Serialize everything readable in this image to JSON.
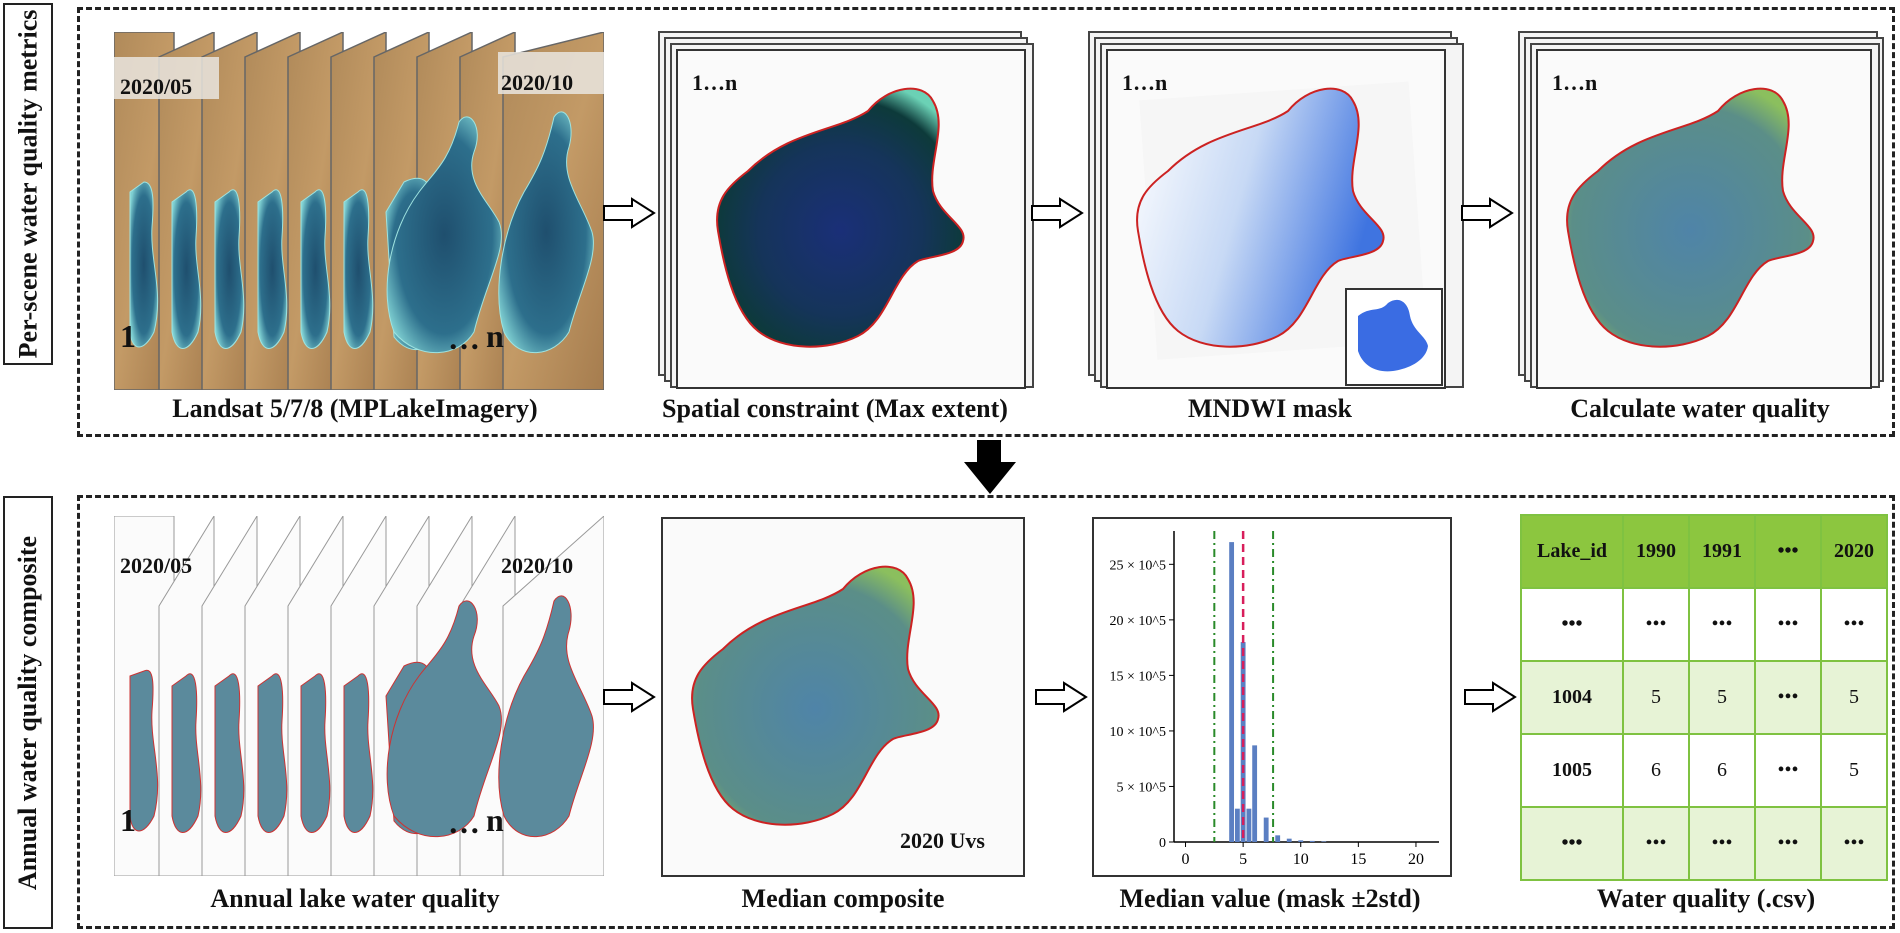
{
  "side_labels": {
    "top": "Per-scene water quality metrics",
    "bottom": "Annual water quality composite"
  },
  "top_row": {
    "landsat": {
      "date_start": "2020/05",
      "date_end": "2020/10",
      "first": "1",
      "ellipsis": "…",
      "last": "n",
      "caption": "Landsat 5/7/8 (MPLakeImagery)"
    },
    "spatial": {
      "count": "1…n",
      "caption": "Spatial constraint (Max extent)"
    },
    "mndwi": {
      "count": "1…n",
      "caption": "MNDWI mask"
    },
    "wq": {
      "count": "1…n",
      "caption": "Calculate water quality"
    }
  },
  "bottom_row": {
    "annual": {
      "date_start": "2020/05",
      "date_end": "2020/10",
      "first": "1",
      "ellipsis": "…",
      "last": "n",
      "caption": "Annual lake water quality"
    },
    "median": {
      "label": "2020 Uvs",
      "caption": "Median composite"
    },
    "hist": {
      "caption": "Median value (mask ±2std)"
    },
    "table": {
      "caption": "Water quality (.csv)",
      "header": [
        "Lake_id",
        "1990",
        "1991",
        "•••",
        "2020"
      ],
      "rows": [
        [
          "•••",
          "•••",
          "•••",
          "•••",
          "•••"
        ],
        [
          "1004",
          "5",
          "5",
          "•••",
          "5"
        ],
        [
          "1005",
          "6",
          "6",
          "•••",
          "5"
        ],
        [
          "•••",
          "•••",
          "•••",
          "•••",
          "•••"
        ]
      ]
    }
  },
  "chart_data": {
    "type": "bar",
    "title": "",
    "xlabel": "",
    "ylabel": "",
    "xlim": [
      -1,
      22
    ],
    "ylim": [
      0,
      28
    ],
    "x_ticks": [
      "0",
      "5",
      "10",
      "15",
      "20"
    ],
    "y_ticks": [
      "0",
      "5 × 10^5",
      "10 × 10^5",
      "15 × 10^5",
      "20 × 10^5",
      "25 × 10^5"
    ],
    "bins": [
      {
        "x": 4.0,
        "value": 27
      },
      {
        "x": 4.5,
        "value": 3
      },
      {
        "x": 5.0,
        "value": 18
      },
      {
        "x": 5.5,
        "value": 3
      },
      {
        "x": 6.0,
        "value": 8.7
      },
      {
        "x": 7.0,
        "value": 2.2
      },
      {
        "x": 8.0,
        "value": 0.6
      },
      {
        "x": 9.0,
        "value": 0.3
      },
      {
        "x": 10.0,
        "value": 0.15
      },
      {
        "x": 11.0,
        "value": 0.1
      },
      {
        "x": 12.0,
        "value": 0.05
      }
    ],
    "median_line": 5.0,
    "std_lines": [
      2.5,
      7.6
    ],
    "colors": {
      "bars": "#5b7fc2",
      "median": "#d81e5b",
      "std": "#2a8a2a"
    }
  }
}
